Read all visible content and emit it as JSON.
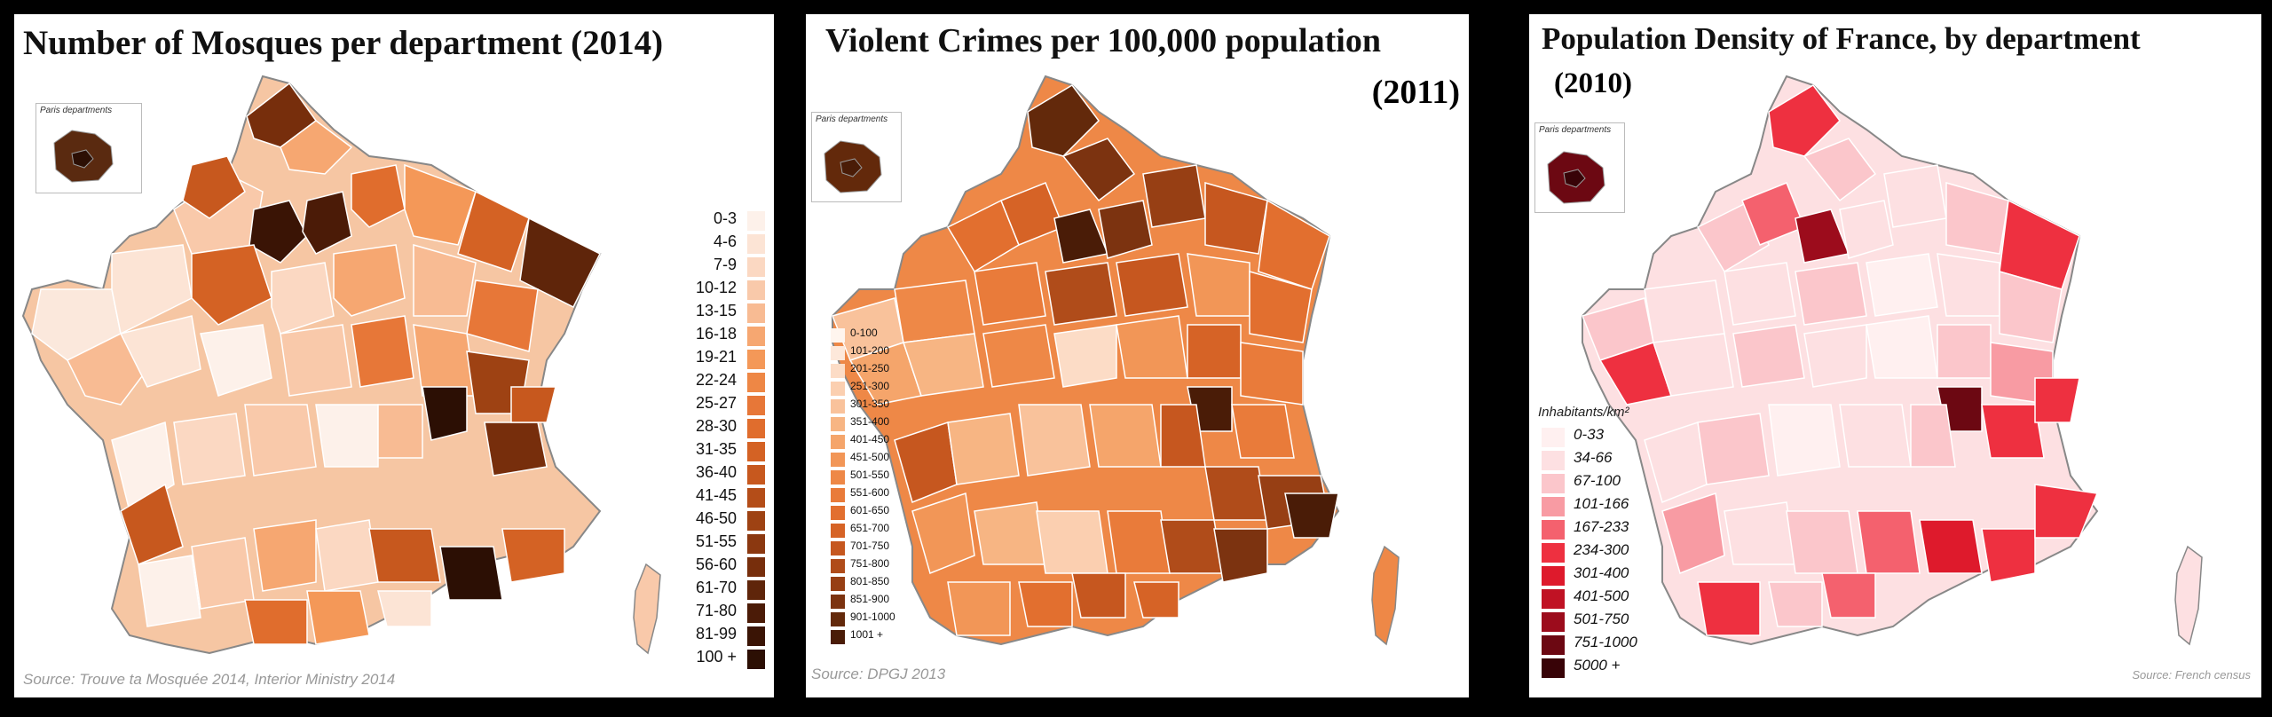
{
  "panels": [
    {
      "title": "Number of Mosques per department (2014)",
      "inset_label": "Paris departments",
      "source": "Source: Trouve ta Mosquée 2014, Interior Ministry 2014",
      "legend": [
        "0-3",
        "4-6",
        "7-9",
        "10-12",
        "13-15",
        "16-18",
        "19-21",
        "22-24",
        "25-27",
        "28-30",
        "31-35",
        "36-40",
        "41-45",
        "46-50",
        "51-55",
        "56-60",
        "61-70",
        "71-80",
        "81-99",
        "100 +"
      ],
      "colors": [
        "#fdf1ea",
        "#fce4d5",
        "#fbd8c2",
        "#f9c9aa",
        "#f8bb93",
        "#f6a771",
        "#f49858",
        "#ee8745",
        "#e77738",
        "#e06d2d",
        "#d46224",
        "#c7581e",
        "#b44d18",
        "#9e4213",
        "#8b3810",
        "#772e0c",
        "#5f250a",
        "#4b1b07",
        "#3a1405",
        "#2c0f04"
      ]
    },
    {
      "title": "Violent Crimes per 100,000 population",
      "title2": "(2011)",
      "inset_label": "Paris departments",
      "source": "Source: DPGJ 2013",
      "legend": [
        "0-100",
        "101-200",
        "201-250",
        "251-300",
        "301-350",
        "351-400",
        "401-450",
        "451-500",
        "501-550",
        "551-600",
        "601-650",
        "651-700",
        "701-750",
        "751-800",
        "801-850",
        "851-900",
        "901-1000",
        "1001 +"
      ],
      "colors": [
        "#fff5ee",
        "#fde8da",
        "#fcdcc6",
        "#fbcfb0",
        "#f9c29b",
        "#f7b583",
        "#f5a56b",
        "#f29657",
        "#ee8847",
        "#e97b3a",
        "#e26f2f",
        "#d66326",
        "#c6571f",
        "#b04c1a",
        "#973f14",
        "#7c3310",
        "#63290b",
        "#4a1c07"
      ]
    },
    {
      "title": "Population Density of France, by department",
      "title2": "(2010)",
      "inset_label": "Paris departments",
      "unit_label": "Inhabitants/km²",
      "source": "Source: French census",
      "legend": [
        "0-33",
        "34-66",
        "67-100",
        "101-166",
        "167-233",
        "234-300",
        "301-400",
        "401-500",
        "501-750",
        "751-1000",
        "5000 +"
      ],
      "colors": [
        "#fff0f0",
        "#fde0e2",
        "#fbc6cb",
        "#f89ba3",
        "#f4616e",
        "#ee3040",
        "#de1a2c",
        "#c01224",
        "#9c0c1c",
        "#6c0812",
        "#380307"
      ]
    }
  ]
}
